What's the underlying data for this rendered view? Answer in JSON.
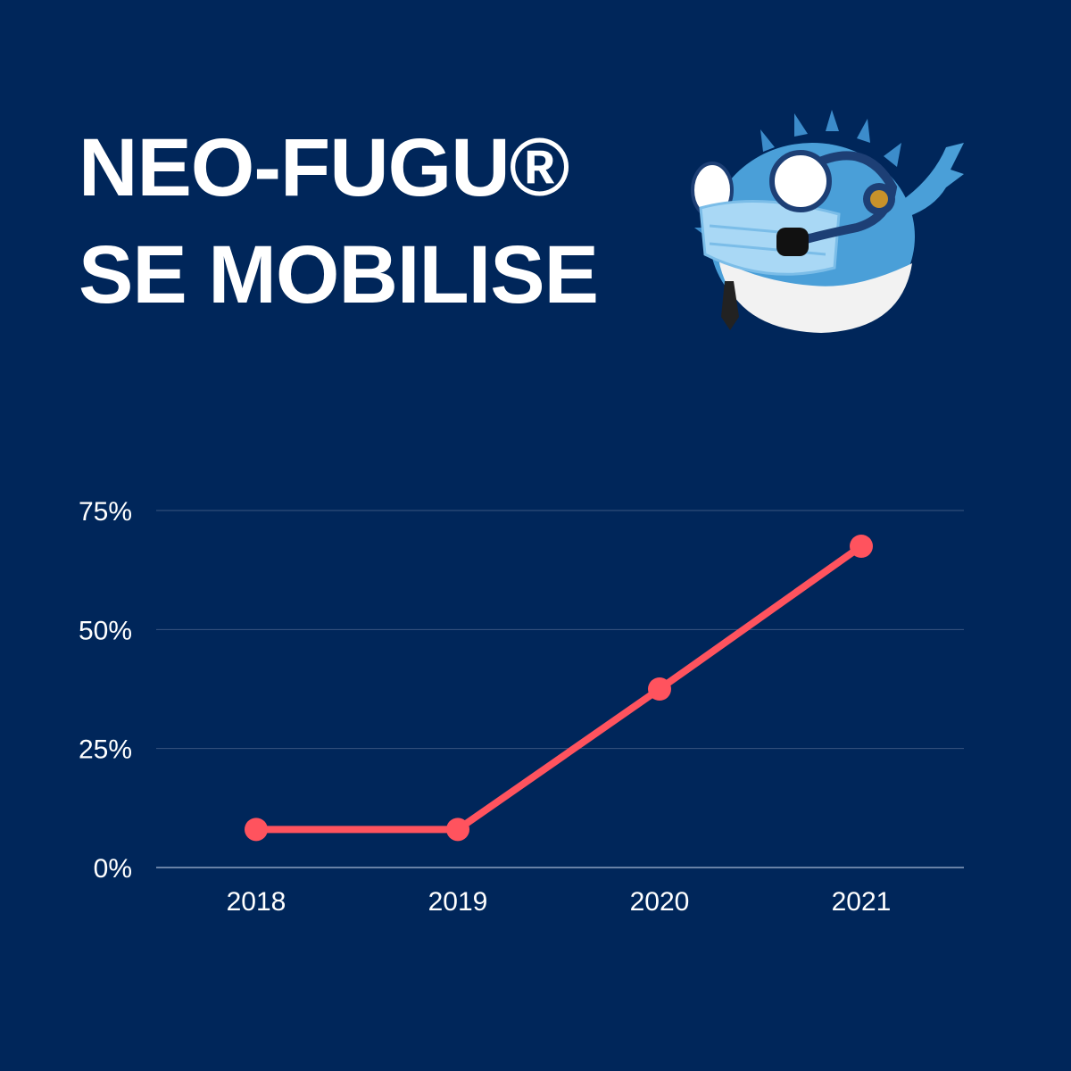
{
  "title": {
    "line1": "NEO-FUGU®",
    "line2": "SE MOBILISE"
  },
  "mascot": {
    "icon": "pufferfish-mascot-icon"
  },
  "colors": {
    "background": "#00265a",
    "line": "#ff535e",
    "grid": "#3a5580",
    "text": "#ffffff"
  },
  "chart_data": {
    "type": "line",
    "title": "",
    "xlabel": "",
    "ylabel": "",
    "categories": [
      "2018",
      "2019",
      "2020",
      "2021"
    ],
    "series": [
      {
        "values": [
          8,
          8,
          37.5,
          67.5
        ]
      }
    ],
    "ylim": [
      0,
      75
    ],
    "yticks": [
      0,
      25,
      50,
      75
    ],
    "ytick_labels": [
      "0%",
      "25%",
      "50%",
      "75%"
    ],
    "grid": true,
    "legend": "none"
  }
}
